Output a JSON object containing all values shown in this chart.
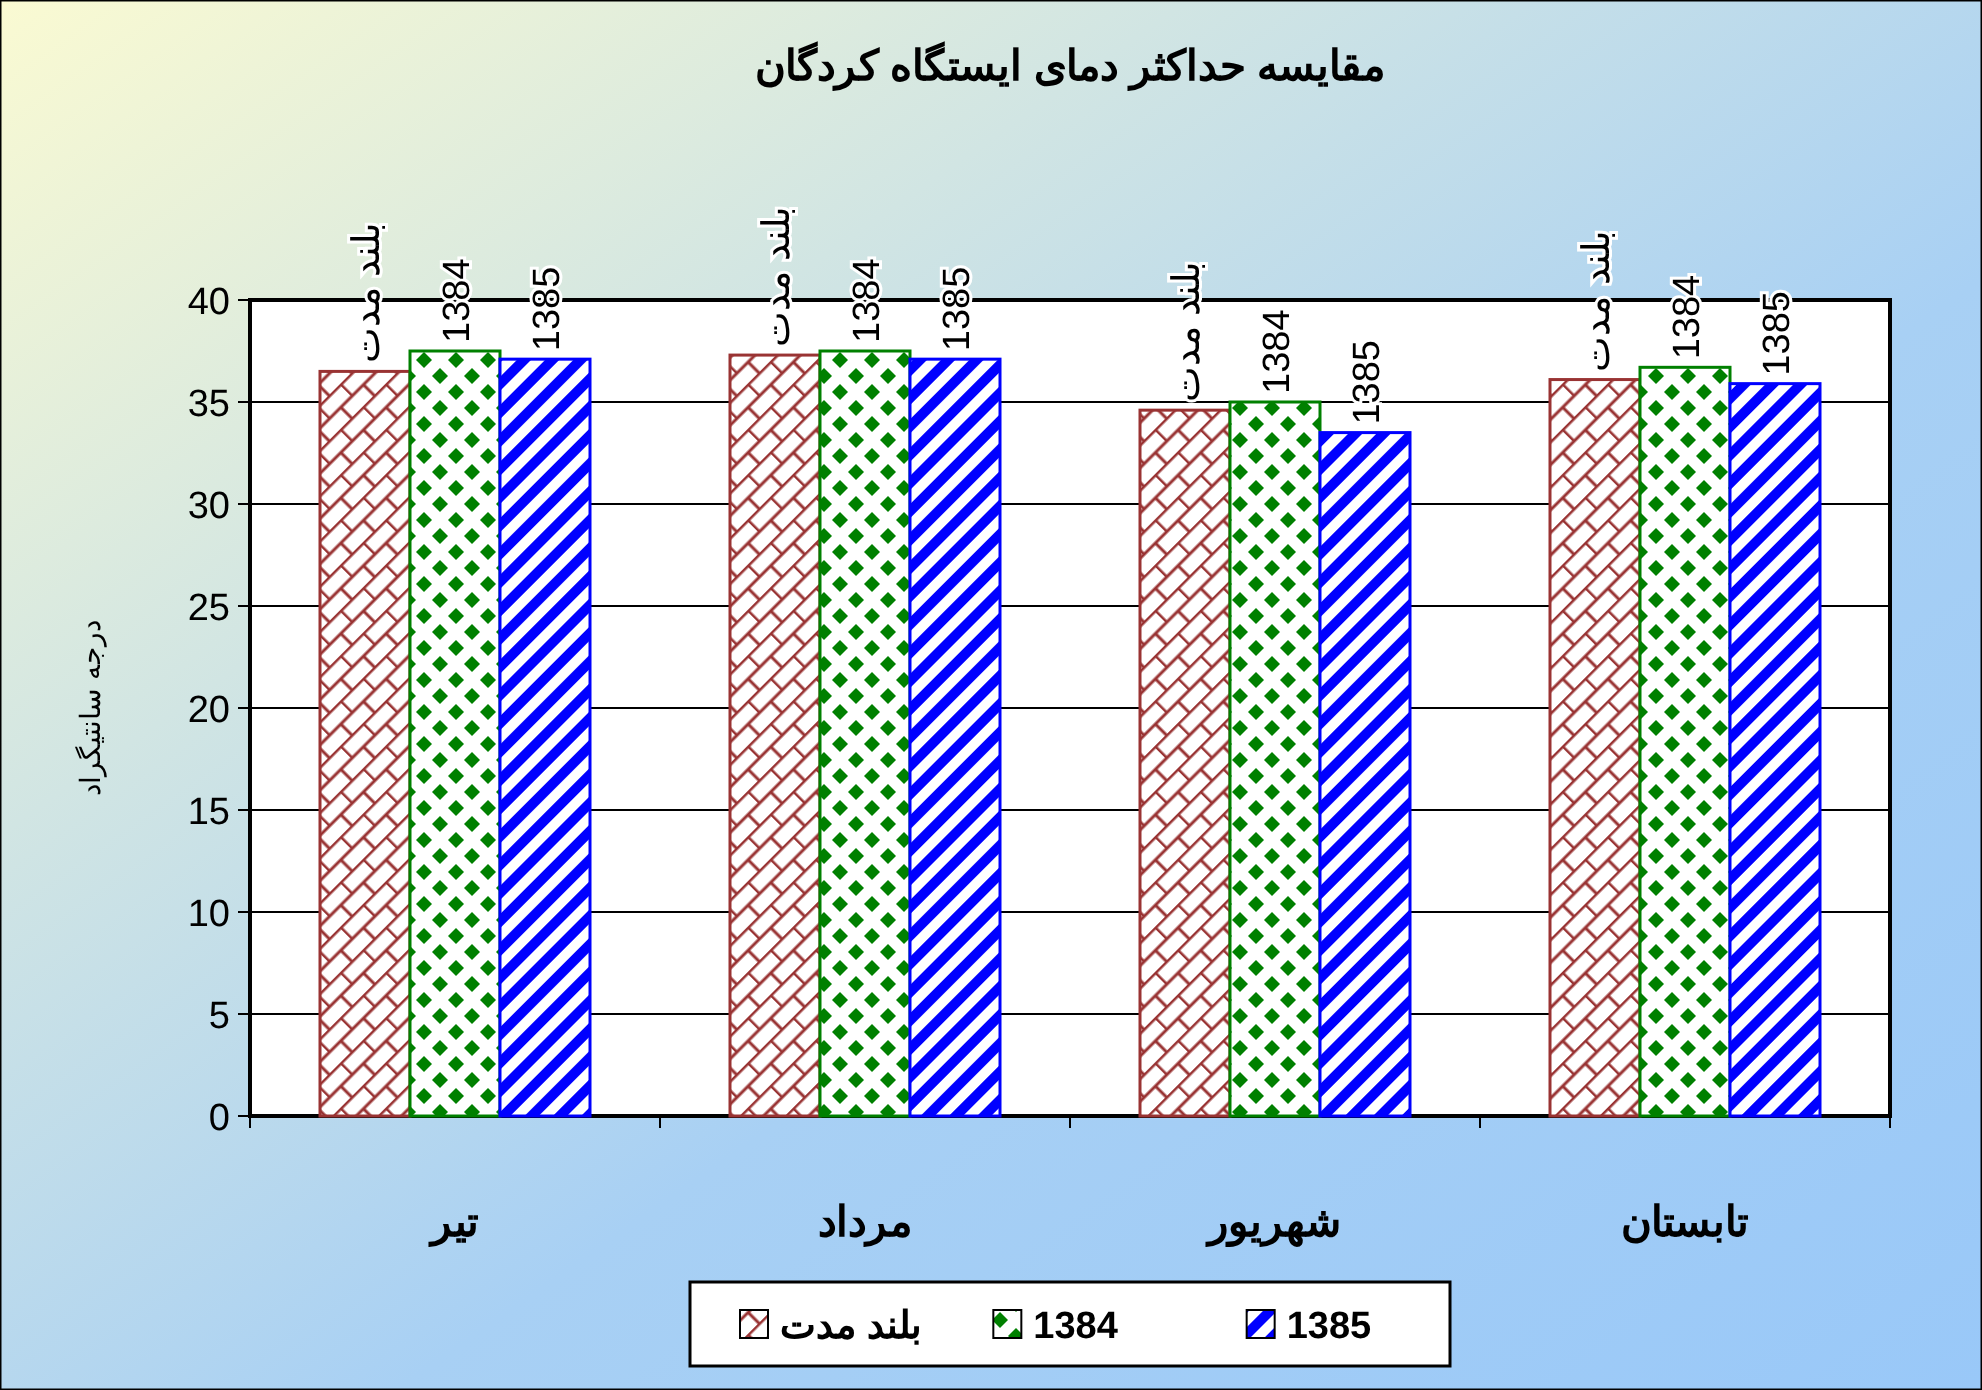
{
  "chart_data": {
    "type": "bar",
    "title": "مقایسه حداکثر دمای ایستگاه کردگان",
    "ylabel": "درجه سانتیگراد",
    "categories": [
      "تیر",
      "مرداد",
      "شهریور",
      "تابستان"
    ],
    "series": [
      {
        "name": "بلند مدت",
        "color": "#993333",
        "values": [
          36.5,
          37.3,
          34.6,
          36.1
        ]
      },
      {
        "name": "1384",
        "color": "#008000",
        "values": [
          37.5,
          37.5,
          35.0,
          36.7
        ]
      },
      {
        "name": "1385",
        "color": "#0000ff",
        "values": [
          37.1,
          37.1,
          33.5,
          35.9
        ]
      }
    ],
    "annotations": [
      "بلند مدت",
      "1384",
      "1385",
      "بلند مدت",
      "1384",
      "1385",
      "بلند مدت",
      "1384",
      "1385",
      "بلند مدت",
      "1384",
      "1385"
    ],
    "ylim": [
      0,
      40
    ],
    "yticks": [
      0,
      5,
      10,
      15,
      20,
      25,
      30,
      35,
      40
    ],
    "grid": "y",
    "legend": "bottom"
  }
}
